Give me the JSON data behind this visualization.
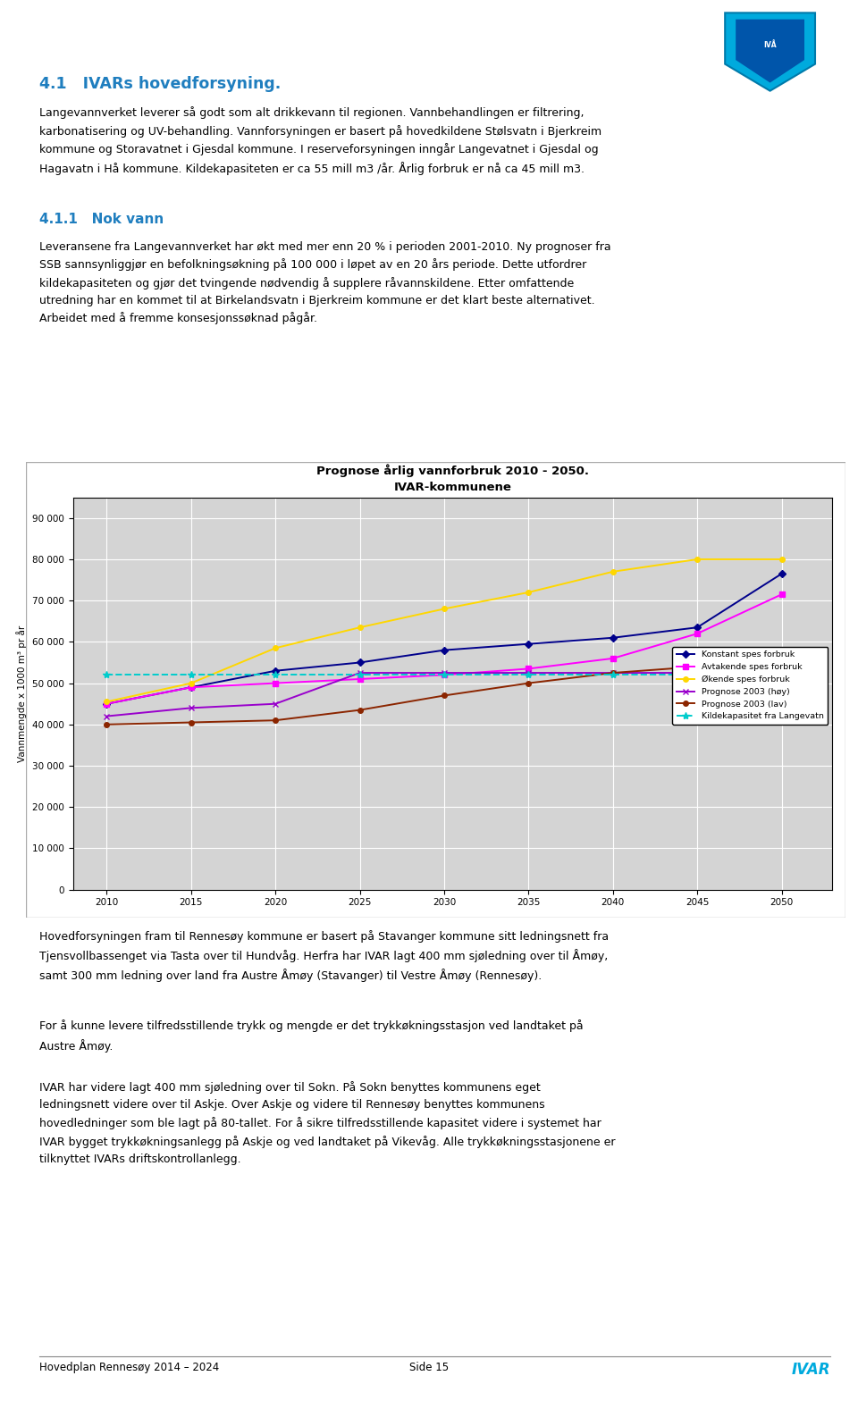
{
  "page_bg": "#ffffff",
  "header_title": "4.1   IVARs hovedforsyning.",
  "header_title_color": "#1F7EBF",
  "header_title_fontsize": 13,
  "body_text_1_parts": [
    {
      "text": "Langevannverket",
      "underline": true
    },
    {
      "text": " leverer så godt som alt drikkevann til regionen. Vannbehandlingen er filtrering, karbonatisering og UV-behandling. Vannforsyningen er basert på hovedkildene Stølsvatn i Bjerkreim kommune og Storavatnet i Gjesdal kommune. I reserveforsyningen inngår Langevatnet i Gjesdal og Hagavatn i Hå kommune. Kildekapasiteten er ca 55 mill m3 /år. Årlig forbruk er nå ca 45 mill m3.",
      "underline": false
    }
  ],
  "section_title": "4.1.1   Nok vann",
  "section_title_color": "#1F7EBF",
  "body_text_2": "Leveransene fra Langevannverket har økt med mer enn 20 % i perioden 2001-2010. Ny prognoser fra SSB sannsynliggjør en befolkningsøkning på 100 000 i løpet av en 20 års periode. Dette utfordrer kildekapasiteten og gjør det tvingende nødvendig å supplere råvannskildene. Etter omfattende utredning har en kommet til at Birkelandsvatn i Bjerkreim kommune er det klart beste alternativet. Arbeidet med å fremme konsesjonssøknad pågår.",
  "chart_title_line1": "Prognose årlig vannforbruk 2010 - 2050.",
  "chart_title_line2": "IVAR-kommunene",
  "chart_bg": "#d4d4d4",
  "years": [
    2010,
    2015,
    2020,
    2025,
    2030,
    2035,
    2040,
    2045,
    2050
  ],
  "konstant_spes": [
    45000,
    49000,
    53000,
    55000,
    58000,
    59500,
    61000,
    63500,
    76500
  ],
  "avtakende_spes": [
    45000,
    49000,
    50000,
    51000,
    52000,
    53500,
    56000,
    62000,
    71500
  ],
  "okende_spes": [
    45500,
    50000,
    58500,
    63500,
    68000,
    72000,
    77000,
    80000,
    80000
  ],
  "prognose_2003_hoy": [
    42000,
    44000,
    45000,
    52500,
    52500,
    52500,
    52500,
    52500,
    56000
  ],
  "prognose_2003_lav": [
    40000,
    40500,
    41000,
    43500,
    47000,
    50000,
    52500,
    54000,
    50000
  ],
  "kildekapasitet": [
    52000,
    52000,
    52000,
    52000,
    52000,
    52000,
    52000,
    52000,
    52000
  ],
  "line_colors": {
    "konstant_spes": "#00008B",
    "avtakende_spes": "#FF00FF",
    "okende_spes": "#FFD700",
    "prognose_2003_hoy": "#9900CC",
    "prognose_2003_lav": "#8B2500",
    "kildekapasitet": "#00CCCC"
  },
  "ylim": [
    0,
    95000
  ],
  "yticks": [
    0,
    10000,
    20000,
    30000,
    40000,
    50000,
    60000,
    70000,
    80000,
    90000
  ],
  "ytick_labels": [
    "0",
    "10 000",
    "20 000",
    "30 000",
    "40 000",
    "50 000",
    "60 000",
    "70 000",
    "80 000",
    "90 000"
  ],
  "ylabel_text": "Vannmengde x 1000 m³ pr år",
  "legend_labels": [
    "Konstant spes forbruk",
    "Avtakende spes forbruk",
    "Økende spes forbruk",
    "Prognose 2003 (høy)",
    "Prognose 2003 (lav)",
    "Kildekapasitet fra Langevatn"
  ],
  "footer_text_1": "Hovedforsyningen fram til Rennesøy kommune er basert på Stavanger kommune sitt ledningsnett fra Tjensvollbassenget via Tasta over til Hundvåg. Herfra har IVAR lagt 400 mm sjøledning over til Åmøy, samt 300 mm ledning over land fra Austre Åmøy (Stavanger) til Vestre Åmøy (Rennesøy).",
  "footer_text_2": "For å kunne levere tilfredsstillende trykk og mengde er det trykkøkningsstasjon ved landtaket på Austre Åmøy.",
  "footer_text_3": "IVAR har videre lagt 400 mm sjøledning over til Sokn. På Sokn benyttes kommunens eget ledningsnett videre over til Askje. Over Askje og videre til Rennesøy benyttes kommunens hovedledninger som ble lagt på 80-tallet. For å sikre tilfredsstillende kapasitet videre i systemet har IVAR bygget trykkøkningsanlegg på Askje og ved landtaket på Vikevåg. Alle trykkøkningsstasjonene er tilknyttet IVARs driftskontrollanlegg.",
  "page_footer_left": "Hovedplan Rennesøy 2014 – 2024",
  "page_footer_center": "Side 15",
  "page_footer_right": "IVAR",
  "logo_color": "#00AADD"
}
